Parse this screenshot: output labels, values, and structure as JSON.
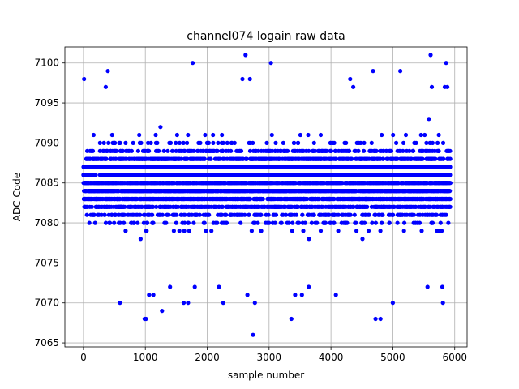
{
  "chart_data": {
    "type": "scatter",
    "title": "channel074 logain raw data",
    "xlabel": "sample number",
    "ylabel": "ADC Code",
    "xlim": [
      -300,
      6200
    ],
    "ylim": [
      7064.5,
      7102
    ],
    "xticks": [
      0,
      1000,
      2000,
      3000,
      4000,
      5000,
      6000
    ],
    "yticks": [
      7065,
      7070,
      7075,
      7080,
      7085,
      7090,
      7095,
      7100
    ],
    "grid": true,
    "marker": "circle",
    "color": "#0000ff",
    "sample_count": 5931,
    "y_min": 7066,
    "y_max": 7101,
    "dense_band": [
      7074,
      7094
    ],
    "outliers": [
      {
        "x": 10,
        "y": 7098
      },
      {
        "x": 395,
        "y": 7099
      },
      {
        "x": 360,
        "y": 7097
      },
      {
        "x": 1765,
        "y": 7100
      },
      {
        "x": 2620,
        "y": 7101
      },
      {
        "x": 3030,
        "y": 7100
      },
      {
        "x": 5610,
        "y": 7101
      },
      {
        "x": 5860,
        "y": 7100
      },
      {
        "x": 4680,
        "y": 7099
      },
      {
        "x": 5120,
        "y": 7099
      },
      {
        "x": 4310,
        "y": 7098
      },
      {
        "x": 2570,
        "y": 7098
      },
      {
        "x": 2690,
        "y": 7098
      },
      {
        "x": 5630,
        "y": 7097
      },
      {
        "x": 5840,
        "y": 7097
      },
      {
        "x": 5880,
        "y": 7097
      },
      {
        "x": 4360,
        "y": 7097
      },
      {
        "x": 2740,
        "y": 7066
      },
      {
        "x": 990,
        "y": 7068
      },
      {
        "x": 1010,
        "y": 7068
      },
      {
        "x": 3360,
        "y": 7068
      },
      {
        "x": 4720,
        "y": 7068
      },
      {
        "x": 4800,
        "y": 7068
      },
      {
        "x": 1270,
        "y": 7069
      },
      {
        "x": 590,
        "y": 7070
      },
      {
        "x": 1620,
        "y": 7070
      },
      {
        "x": 1690,
        "y": 7070
      },
      {
        "x": 2260,
        "y": 7070
      },
      {
        "x": 2770,
        "y": 7070
      },
      {
        "x": 5000,
        "y": 7070
      },
      {
        "x": 5810,
        "y": 7070
      },
      {
        "x": 5800,
        "y": 7072
      },
      {
        "x": 1060,
        "y": 7071
      },
      {
        "x": 1130,
        "y": 7071
      },
      {
        "x": 1400,
        "y": 7072
      },
      {
        "x": 2190,
        "y": 7072
      },
      {
        "x": 3420,
        "y": 7071
      },
      {
        "x": 3530,
        "y": 7071
      },
      {
        "x": 4080,
        "y": 7071
      },
      {
        "x": 5560,
        "y": 7072
      },
      {
        "x": 2650,
        "y": 7071
      },
      {
        "x": 1800,
        "y": 7072
      },
      {
        "x": 3640,
        "y": 7072
      }
    ]
  }
}
